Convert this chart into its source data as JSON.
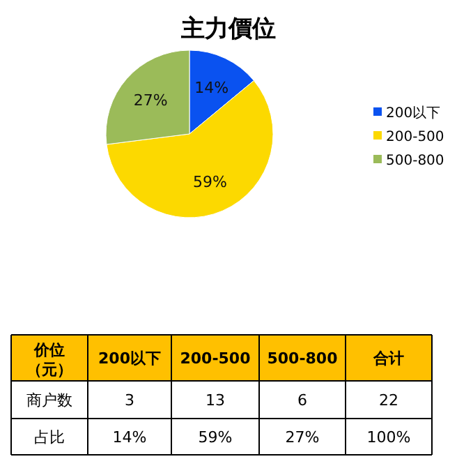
{
  "chart_data": {
    "type": "pie",
    "title": "主力價位",
    "categories": [
      "200以下",
      "200-500",
      "500-800"
    ],
    "values": [
      14,
      59,
      27
    ],
    "value_labels": [
      "14%",
      "59%",
      "27%"
    ],
    "colors": [
      "#0a52f0",
      "#fcd900",
      "#9bbb59"
    ],
    "legend": "right",
    "annotations": [
      "价位（元）",
      "合计",
      "商户数",
      "3",
      "13",
      "6",
      "22",
      "占比",
      "100%"
    ]
  }
}
